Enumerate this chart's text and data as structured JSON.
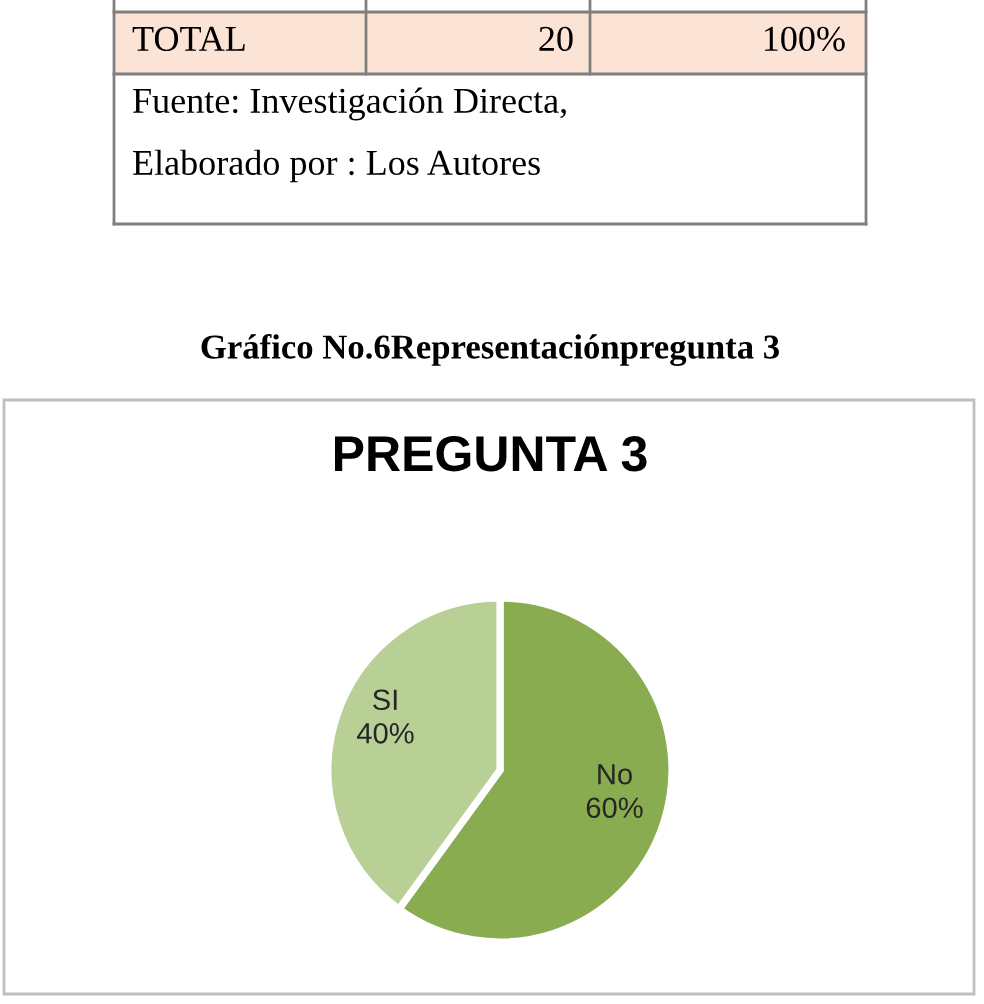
{
  "chart_data": {
    "type": "pie",
    "title": "PREGUNTA 3",
    "categories": [
      "No",
      "SI"
    ],
    "values": [
      60,
      40
    ],
    "value_labels": [
      "60%",
      "40%"
    ],
    "colors": [
      "#8aac50",
      "#b8cf95"
    ],
    "annotations": [
      "Gráfico No.6Representaciónpregunta 3",
      "TOTAL",
      "20",
      "100%",
      "Fuente: Investigación Directa,",
      "Elaborado por : Los Autores"
    ]
  }
}
